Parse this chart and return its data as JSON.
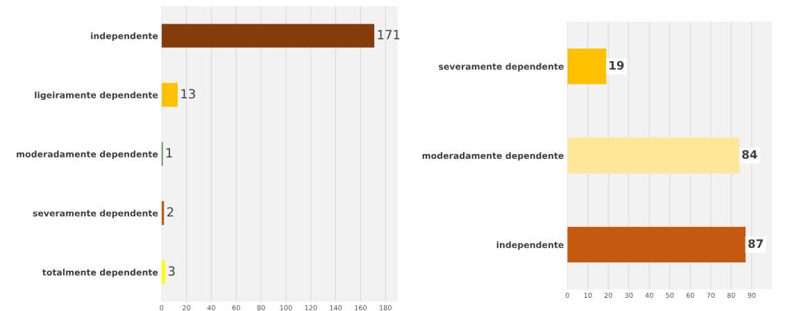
{
  "chart_data": [
    {
      "type": "bar",
      "orientation": "horizontal",
      "categories": [
        "independente",
        "ligeiramente dependente",
        "moderadamente dependente",
        "severamente dependente",
        "totalmente dependente"
      ],
      "values": [
        171,
        13,
        1,
        2,
        3
      ],
      "colors": [
        "#843c0c",
        "#ffc000",
        "#548235",
        "#c55a11",
        "#ffff00"
      ],
      "xlim": [
        0,
        190
      ],
      "xticks": [
        0,
        20,
        40,
        60,
        80,
        100,
        120,
        140,
        160,
        180
      ],
      "grid": "x",
      "data_labels": true,
      "legend": false
    },
    {
      "type": "bar",
      "orientation": "horizontal",
      "categories": [
        "severamente dependente",
        "moderadamente dependente",
        "independente"
      ],
      "values": [
        19,
        84,
        87
      ],
      "colors": [
        "#ffc000",
        "#ffe699",
        "#c55a11"
      ],
      "xlim": [
        0,
        100
      ],
      "xticks": [
        0,
        10,
        20,
        30,
        40,
        50,
        60,
        70,
        80,
        90
      ],
      "grid": "x",
      "data_labels": true,
      "legend": false
    }
  ]
}
